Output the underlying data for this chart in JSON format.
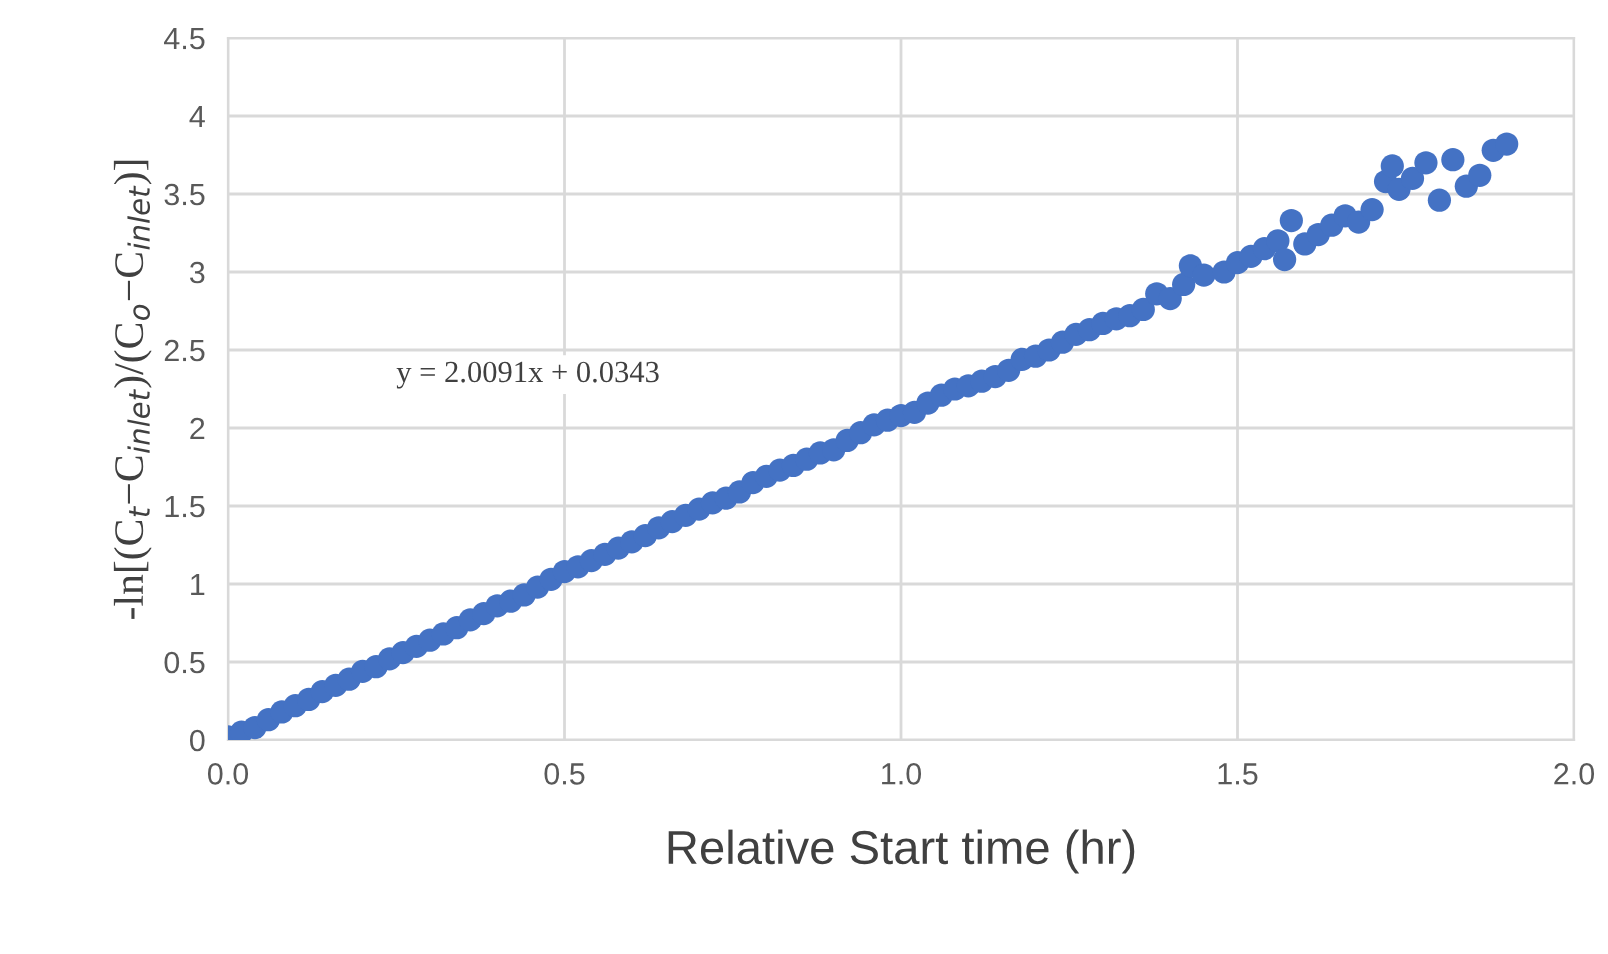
{
  "chart_data": {
    "type": "scatter",
    "xlabel": "Relative Start time (hr)",
    "ylabel": "-ln[(C$_{t}$−C$_{inlet}$)/(C$_{o}$−C$_{inlet}$)]",
    "annotations": [
      "y = 2.0091x + 0.0343"
    ],
    "xlim": [
      0,
      2
    ],
    "xticks": [
      {
        "value": 0,
        "label": "0.0"
      },
      {
        "value": 0.5,
        "label": "0.5"
      },
      {
        "value": 1,
        "label": "1.0"
      },
      {
        "value": 1.5,
        "label": "1.5"
      },
      {
        "value": 2,
        "label": "2.0"
      }
    ],
    "ylim": [
      0,
      4.5
    ],
    "yticks": [
      0,
      0.5,
      1,
      1.5,
      2,
      2.5,
      3,
      3.5,
      4,
      4.5
    ],
    "grid": true,
    "marker": "circle",
    "legend": false,
    "series": [
      {
        "color": "#4472c4",
        "x": [
          0.0,
          0.02,
          0.04,
          0.06,
          0.08,
          0.1,
          0.12,
          0.14,
          0.16,
          0.18,
          0.2,
          0.22,
          0.24,
          0.26,
          0.28,
          0.3,
          0.32,
          0.34,
          0.36,
          0.38,
          0.4,
          0.42,
          0.44,
          0.46,
          0.48,
          0.5,
          0.52,
          0.54,
          0.56,
          0.58,
          0.6,
          0.62,
          0.64,
          0.66,
          0.68,
          0.7,
          0.72,
          0.74,
          0.76,
          0.78,
          0.8,
          0.82,
          0.84,
          0.86,
          0.88,
          0.9,
          0.92,
          0.94,
          0.96,
          0.98,
          1.0,
          1.02,
          1.04,
          1.06,
          1.08,
          1.1,
          1.12,
          1.14,
          1.16,
          1.18,
          1.2,
          1.22,
          1.24,
          1.26,
          1.28,
          1.3,
          1.32,
          1.34,
          1.36,
          1.38,
          1.4,
          1.42,
          1.43,
          1.45,
          1.48,
          1.5,
          1.52,
          1.54,
          1.56,
          1.57,
          1.58,
          1.6,
          1.62,
          1.64,
          1.66,
          1.68,
          1.7,
          1.72,
          1.73,
          1.74,
          1.76,
          1.78,
          1.8,
          1.82,
          1.84,
          1.86,
          1.88,
          1.9
        ],
        "values": [
          0.02,
          0.05,
          0.08,
          0.13,
          0.18,
          0.22,
          0.26,
          0.31,
          0.35,
          0.39,
          0.44,
          0.47,
          0.52,
          0.56,
          0.6,
          0.64,
          0.68,
          0.72,
          0.77,
          0.81,
          0.86,
          0.89,
          0.93,
          0.98,
          1.03,
          1.08,
          1.11,
          1.15,
          1.19,
          1.23,
          1.27,
          1.31,
          1.36,
          1.4,
          1.44,
          1.48,
          1.52,
          1.55,
          1.59,
          1.65,
          1.69,
          1.73,
          1.76,
          1.8,
          1.84,
          1.86,
          1.92,
          1.97,
          2.02,
          2.05,
          2.08,
          2.1,
          2.16,
          2.21,
          2.25,
          2.27,
          2.3,
          2.33,
          2.37,
          2.44,
          2.46,
          2.5,
          2.55,
          2.6,
          2.63,
          2.67,
          2.7,
          2.72,
          2.76,
          2.86,
          2.83,
          2.92,
          3.04,
          2.98,
          3.0,
          3.06,
          3.1,
          3.15,
          3.2,
          3.08,
          3.33,
          3.18,
          3.24,
          3.3,
          3.36,
          3.32,
          3.4,
          3.58,
          3.68,
          3.53,
          3.6,
          3.7,
          3.46,
          3.72,
          3.55,
          3.62,
          3.78,
          3.82
        ]
      }
    ]
  }
}
